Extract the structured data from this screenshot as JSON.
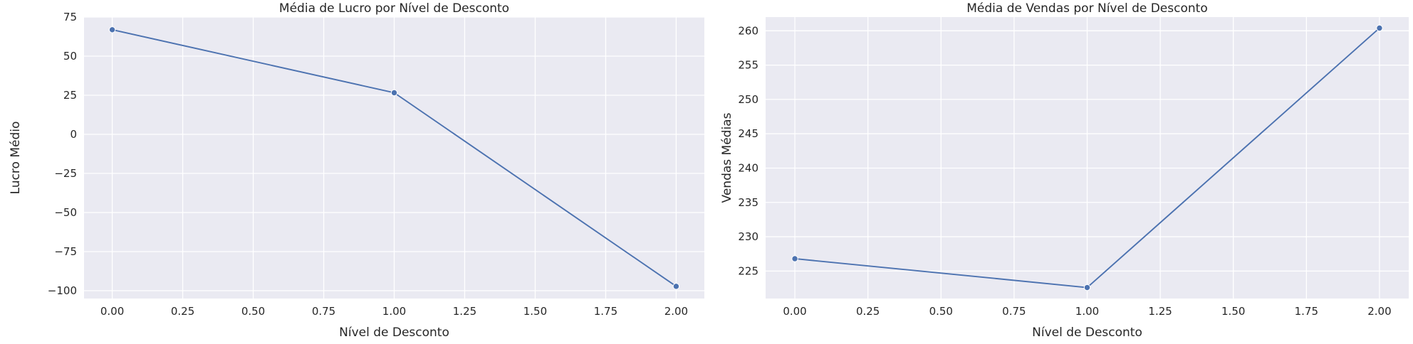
{
  "chart_data": [
    {
      "type": "line",
      "title": "Média de Lucro por Nível de Desconto",
      "xlabel": "Nível de Desconto",
      "ylabel": "Lucro Médio",
      "x": [
        0.0,
        1.0,
        2.0
      ],
      "series": [
        {
          "values": [
            66.9,
            26.6,
            -97.2
          ]
        }
      ],
      "xlim": [
        -0.1,
        2.1
      ],
      "ylim": [
        -105,
        75
      ],
      "xticks": [
        0.0,
        0.25,
        0.5,
        0.75,
        1.0,
        1.25,
        1.5,
        1.75,
        2.0
      ],
      "xtick_labels": [
        "0.00",
        "0.25",
        "0.50",
        "0.75",
        "1.00",
        "1.25",
        "1.50",
        "1.75",
        "2.00"
      ],
      "yticks": [
        -100,
        -75,
        -50,
        -25,
        0,
        25,
        50,
        75
      ],
      "ytick_labels": [
        "−100",
        "−75",
        "−50",
        "−25",
        "0",
        "25",
        "50",
        "75"
      ],
      "grid": true,
      "marker": "o",
      "color": "#4c72b0",
      "background": "#eaeaf2"
    },
    {
      "type": "line",
      "title": "Média de Vendas por Nível de Desconto",
      "xlabel": "Nível de Desconto",
      "ylabel": "Vendas Médias",
      "x": [
        0.0,
        1.0,
        2.0
      ],
      "series": [
        {
          "values": [
            226.8,
            222.6,
            260.4
          ]
        }
      ],
      "xlim": [
        -0.1,
        2.1
      ],
      "ylim": [
        221.0,
        262.0
      ],
      "xticks": [
        0.0,
        0.25,
        0.5,
        0.75,
        1.0,
        1.25,
        1.5,
        1.75,
        2.0
      ],
      "xtick_labels": [
        "0.00",
        "0.25",
        "0.50",
        "0.75",
        "1.00",
        "1.25",
        "1.50",
        "1.75",
        "2.00"
      ],
      "yticks": [
        225,
        230,
        235,
        240,
        245,
        250,
        255,
        260
      ],
      "ytick_labels": [
        "225",
        "230",
        "235",
        "240",
        "245",
        "250",
        "255",
        "260"
      ],
      "grid": true,
      "marker": "o",
      "color": "#4c72b0",
      "background": "#eaeaf2"
    }
  ]
}
